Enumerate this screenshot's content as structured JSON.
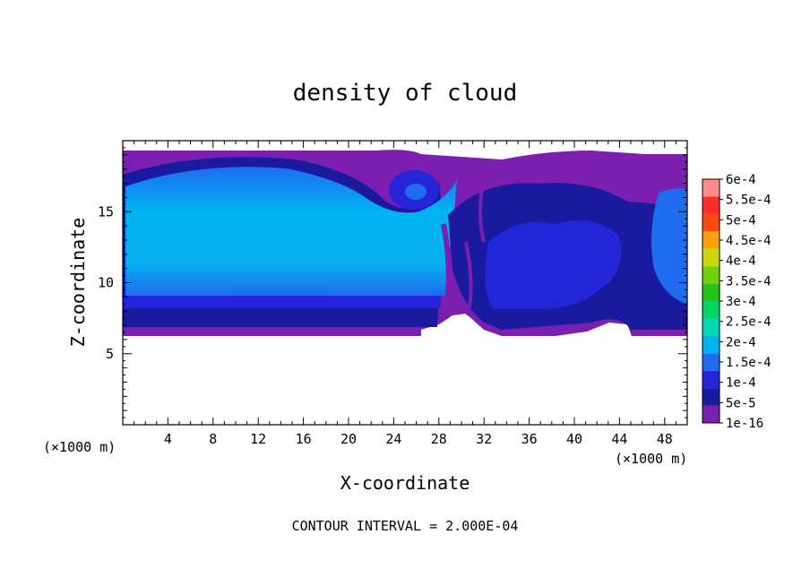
{
  "chart_data": {
    "type": "heatmap",
    "title": "density of cloud",
    "xlabel": "X-coordinate",
    "ylabel": "Z-coordinate",
    "x_unit": "(×1000 m)",
    "y_unit": "(×1000 m)",
    "xlim": [
      0,
      50
    ],
    "ylim": [
      0,
      20
    ],
    "x_ticks": [
      "4",
      "8",
      "12",
      "16",
      "20",
      "24",
      "28",
      "32",
      "36",
      "40",
      "44",
      "48"
    ],
    "y_ticks": [
      "5",
      "10",
      "15"
    ],
    "colorbar": {
      "levels": [
        "1e-16",
        "5e-5",
        "1e-4",
        "1.5e-4",
        "2e-4",
        "2.5e-4",
        "3e-4",
        "3.5e-4",
        "4e-4",
        "4.5e-4",
        "5e-4",
        "5.5e-4",
        "6e-4"
      ],
      "colors": [
        "#7a1fb0",
        "#1a1a9e",
        "#2424d8",
        "#1e6cf0",
        "#00b4f2",
        "#00d6b8",
        "#00d463",
        "#21c41a",
        "#6fd20d",
        "#c8d80a",
        "#ff9f0a",
        "#ff4812",
        "#ff2a2a",
        "#ff8a8a"
      ]
    },
    "annotation": "CONTOUR INTERVAL = 2.000E-04",
    "grid": false,
    "legend": "right colorbar"
  }
}
